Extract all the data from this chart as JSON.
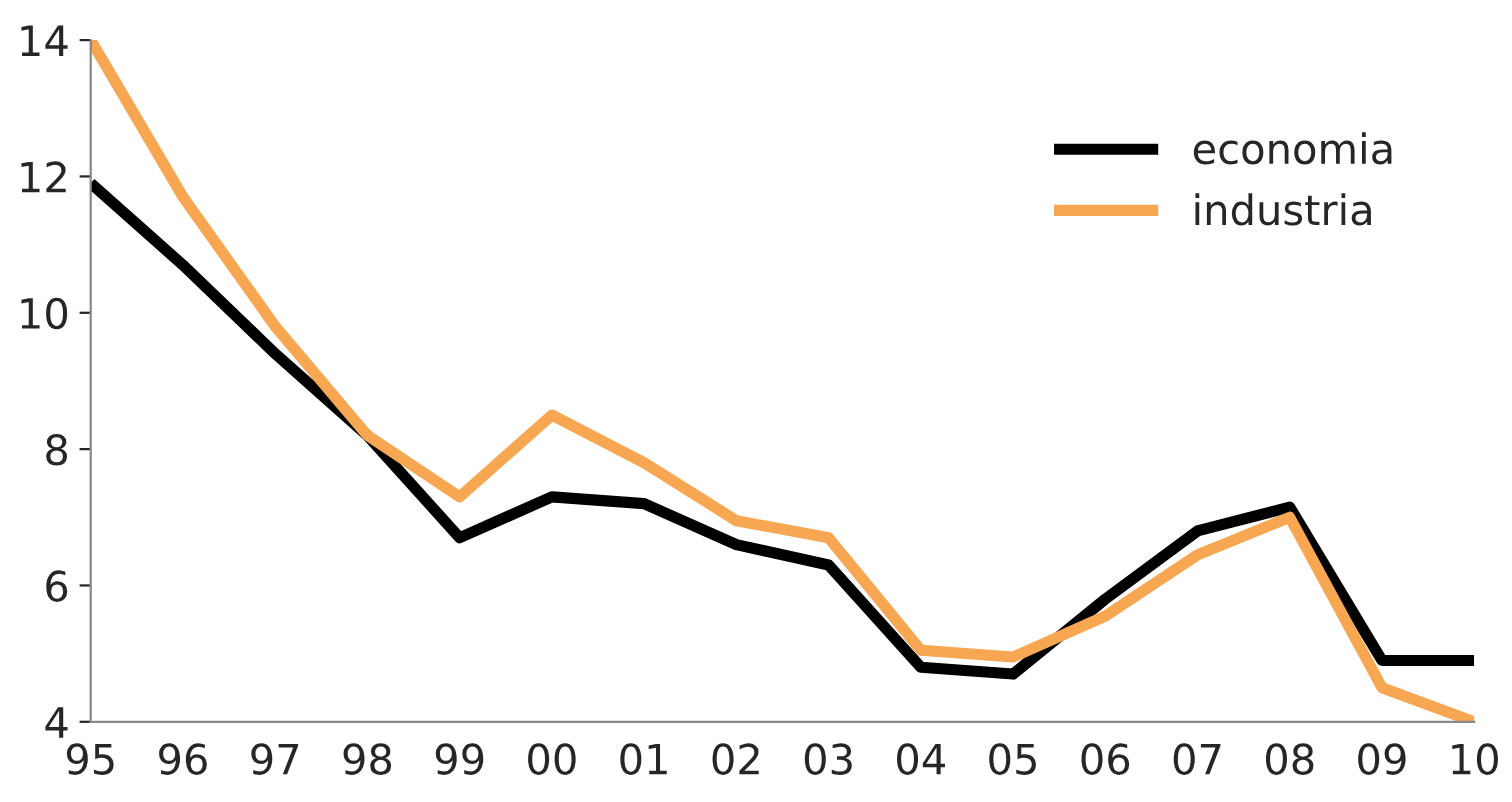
{
  "chart_data": {
    "type": "line",
    "categories": [
      "95",
      "96",
      "97",
      "98",
      "99",
      "00",
      "01",
      "02",
      "03",
      "04",
      "05",
      "06",
      "07",
      "08",
      "09",
      "10"
    ],
    "series": [
      {
        "name": "economia",
        "color": "#000000",
        "values": [
          11.9,
          10.7,
          9.4,
          8.2,
          6.7,
          7.3,
          7.2,
          6.6,
          6.3,
          4.8,
          4.7,
          5.8,
          6.8,
          7.15,
          4.9,
          4.9
        ]
      },
      {
        "name": "industria",
        "color": "#f7a652",
        "values": [
          14,
          11.7,
          9.8,
          8.2,
          7.3,
          8.5,
          7.8,
          6.95,
          6.7,
          5.05,
          4.95,
          5.55,
          6.45,
          7.0,
          4.5,
          4.0
        ]
      }
    ],
    "ylim": [
      4,
      14
    ],
    "yticks": [
      4,
      6,
      8,
      10,
      12,
      14
    ],
    "grid": false,
    "legend": "top right",
    "marker": "none",
    "line_style": "solid"
  }
}
